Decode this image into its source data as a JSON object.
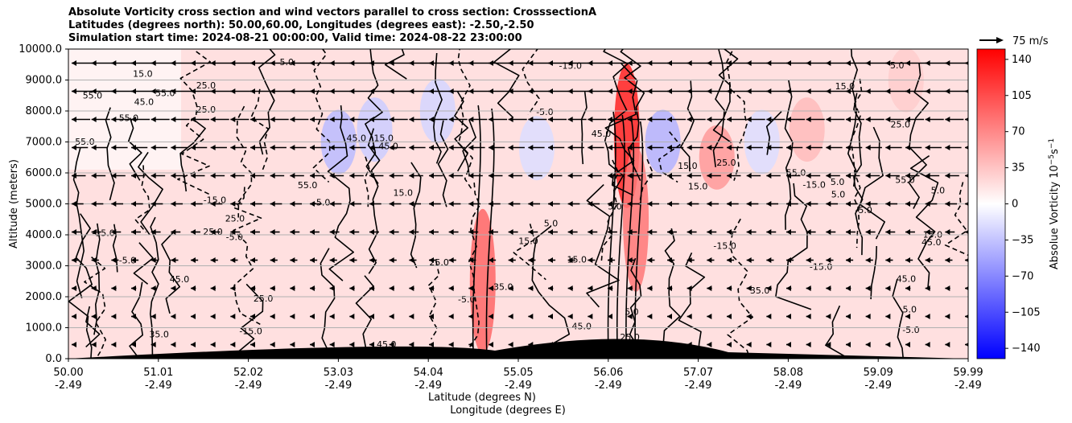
{
  "title_lines": [
    "Absolute Vorticity cross section and wind vectors parallel to cross section: CrosssectionA",
    "Latitudes (degrees north): 50.00,60.00, Longitudes (degrees east): -2.50,-2.50",
    "Simulation start time: 2024-08-21 00:00:00, Valid time: 2024-08-22 23:00:00"
  ],
  "chart_data": {
    "type": "heatmap",
    "ylabel": "Altitude (meters)",
    "xlabel_lines": [
      "Latitude (degrees N)",
      "Longitude (degrees E)"
    ],
    "ylim": [
      0,
      10000
    ],
    "y_ticks": [
      "0.0",
      "1000.0",
      "2000.0",
      "3000.0",
      "4000.0",
      "5000.0",
      "6000.0",
      "7000.0",
      "8000.0",
      "9000.0",
      "10000.0"
    ],
    "x_ticks": [
      {
        "lat": "50.00",
        "lon": "-2.49"
      },
      {
        "lat": "51.01",
        "lon": "-2.49"
      },
      {
        "lat": "52.02",
        "lon": "-2.49"
      },
      {
        "lat": "53.03",
        "lon": "-2.49"
      },
      {
        "lat": "54.04",
        "lon": "-2.49"
      },
      {
        "lat": "55.05",
        "lon": "-2.49"
      },
      {
        "lat": "56.06",
        "lon": "-2.49"
      },
      {
        "lat": "57.07",
        "lon": "-2.49"
      },
      {
        "lat": "58.08",
        "lon": "-2.49"
      },
      {
        "lat": "59.09",
        "lon": "-2.49"
      },
      {
        "lat": "59.99",
        "lon": "-2.49"
      }
    ],
    "grid": "horizontal",
    "colorbar": {
      "label": "Absolue Vorticity 10",
      "label_exp1": "−5",
      "label_mid": "s",
      "label_exp2": "−1",
      "range": [
        -150,
        150
      ],
      "ticks": [
        "140",
        "105",
        "70",
        "35",
        "0",
        "−35",
        "−70",
        "−105",
        "−140"
      ],
      "tick_values": [
        140,
        105,
        70,
        35,
        0,
        -35,
        -70,
        -105,
        -140
      ],
      "colormap": "bwr"
    },
    "quiver_key": {
      "label": "75 m/s"
    },
    "contour_labels": [
      "5.0",
      "15.0",
      "25.0",
      "35.0",
      "45.0",
      "55.0",
      "-5.0",
      "-15.0"
    ],
    "vorticity_regions": [
      {
        "lat": 53.0,
        "alt": 7000,
        "value": -40
      },
      {
        "lat": 53.4,
        "alt": 7400,
        "value": -30
      },
      {
        "lat": 54.1,
        "alt": 8000,
        "value": -25
      },
      {
        "lat": 54.6,
        "alt": 2500,
        "value": 90
      },
      {
        "lat": 55.2,
        "alt": 6800,
        "value": -20
      },
      {
        "lat": 56.2,
        "alt": 7200,
        "value": 130
      },
      {
        "lat": 56.3,
        "alt": 4500,
        "value": 80
      },
      {
        "lat": 56.6,
        "alt": 7000,
        "value": -45
      },
      {
        "lat": 57.2,
        "alt": 6500,
        "value": 60
      },
      {
        "lat": 57.7,
        "alt": 7000,
        "value": -20
      },
      {
        "lat": 58.2,
        "alt": 7400,
        "value": 40
      },
      {
        "lat": 59.3,
        "alt": 9000,
        "value": 30
      }
    ],
    "wind": {
      "upper_direction": "toward south (negative latitude)",
      "lower_direction": "weak"
    }
  }
}
